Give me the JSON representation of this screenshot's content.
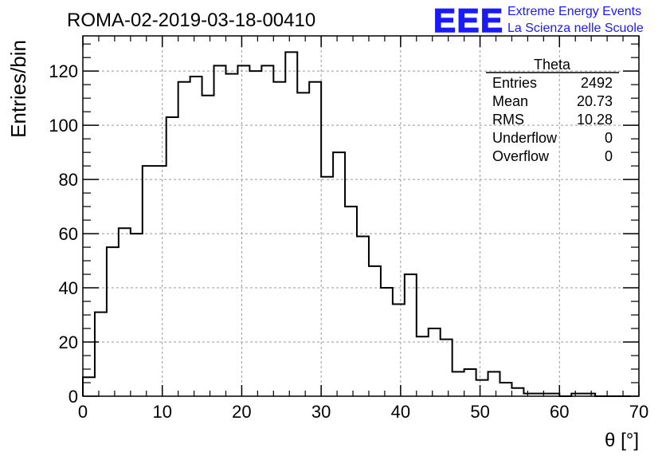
{
  "header": {
    "run_title": "ROMA-02-2019-03-18-00410",
    "logo_text": "EEE",
    "logo_line1": "Extreme Energy Events",
    "logo_line2": "La Scienza nelle Scuole",
    "logo_color": "#1a1aff"
  },
  "stats": {
    "title": "Theta",
    "rows": [
      {
        "label": "Entries",
        "value": "2492"
      },
      {
        "label": "Mean",
        "value": "20.73"
      },
      {
        "label": "RMS",
        "value": "10.28"
      },
      {
        "label": "Underflow",
        "value": "0"
      },
      {
        "label": "Overflow",
        "value": "0"
      }
    ]
  },
  "chart_data": {
    "type": "histogram",
    "title": "",
    "xlabel": "θ [°]",
    "ylabel": "Entries/bin",
    "xlim": [
      0,
      70
    ],
    "ylim": [
      0,
      133
    ],
    "bin_width": 1.5,
    "bin_start": 0,
    "x_ticks": [
      0,
      10,
      20,
      30,
      40,
      50,
      60,
      70
    ],
    "y_ticks": [
      0,
      20,
      40,
      60,
      80,
      100,
      120
    ],
    "grid": true,
    "legend": "top-right stats box",
    "values": [
      7,
      31,
      55,
      62,
      60,
      85,
      85,
      103,
      116,
      118,
      111,
      122,
      119,
      122,
      120,
      122,
      116,
      127,
      112,
      116,
      81,
      90,
      70,
      59,
      48,
      40,
      34,
      45,
      22,
      25,
      21,
      9,
      10,
      6,
      9,
      5,
      3,
      1,
      1,
      1,
      0,
      1,
      1,
      0,
      0,
      0
    ]
  }
}
